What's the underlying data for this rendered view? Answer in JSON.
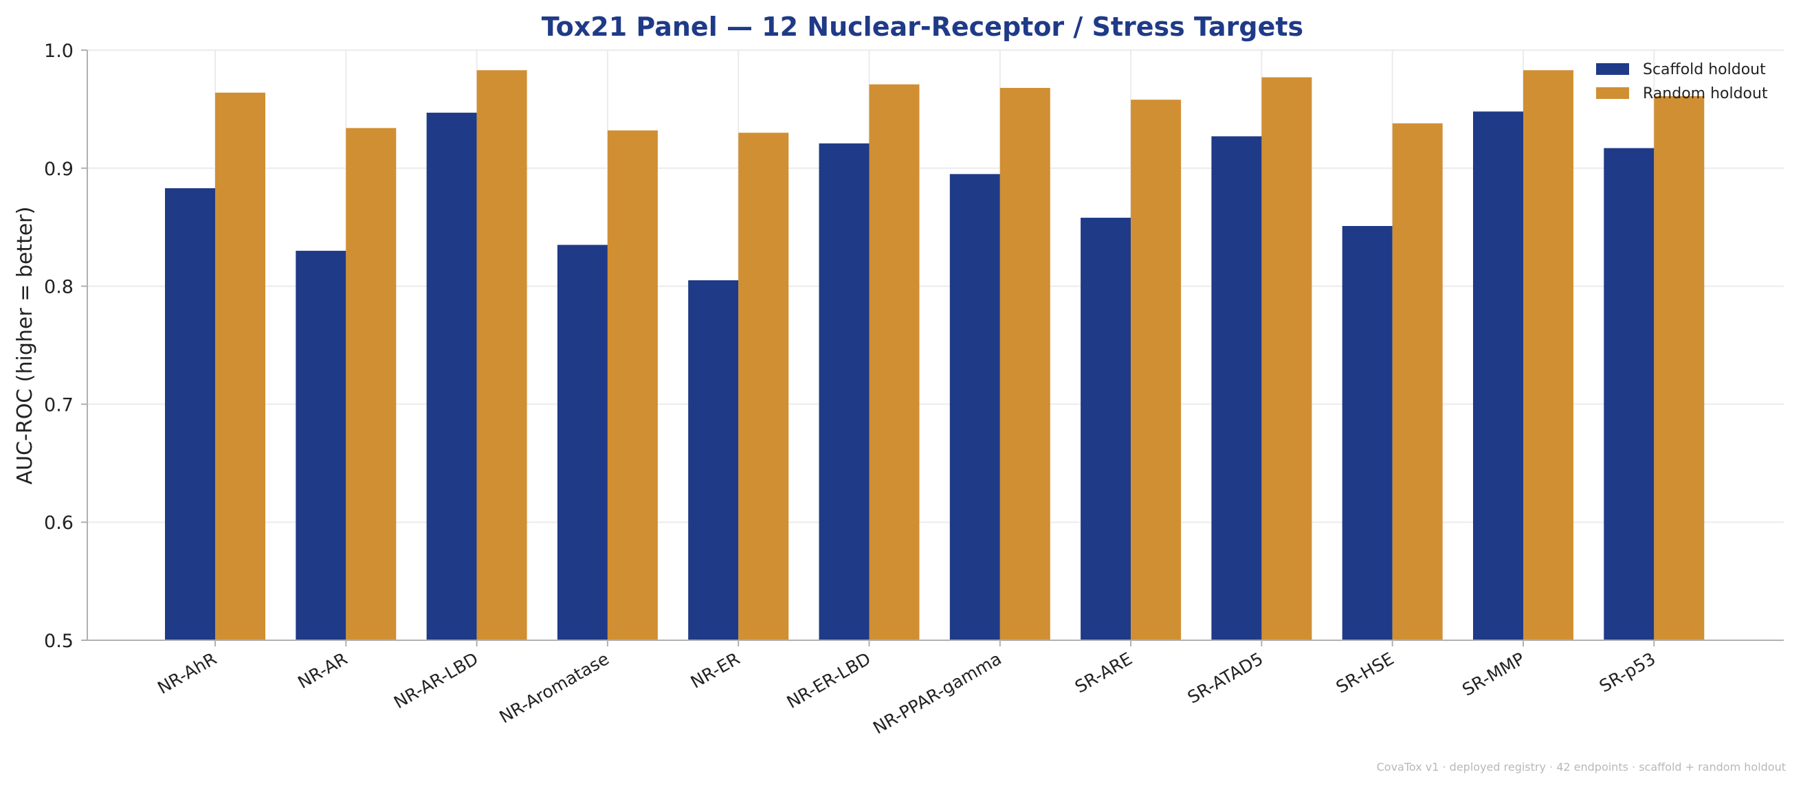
{
  "chart_data": {
    "type": "bar",
    "title": "Tox21 Panel — 12 Nuclear-Receptor / Stress Targets",
    "xlabel": "",
    "ylabel": "AUC-ROC  (higher = better)",
    "ylim": [
      0.5,
      1.0
    ],
    "yticks": [
      "0.5",
      "0.6",
      "0.7",
      "0.8",
      "0.9",
      "1.0"
    ],
    "grid": true,
    "legend_position": "top-right",
    "categories": [
      "NR-AhR",
      "NR-AR",
      "NR-AR-LBD",
      "NR-Aromatase",
      "NR-ER",
      "NR-ER-LBD",
      "NR-PPAR-gamma",
      "SR-ARE",
      "SR-ATAD5",
      "SR-HSE",
      "SR-MMP",
      "SR-p53"
    ],
    "series": [
      {
        "name": "Scaffold holdout",
        "color": "#1f3a87",
        "values": [
          0.883,
          0.83,
          0.947,
          0.835,
          0.805,
          0.921,
          0.895,
          0.858,
          0.927,
          0.851,
          0.948,
          0.917
        ]
      },
      {
        "name": "Random holdout",
        "color": "#d08f33",
        "values": [
          0.964,
          0.934,
          0.983,
          0.932,
          0.93,
          0.971,
          0.968,
          0.958,
          0.977,
          0.938,
          0.983,
          0.961
        ]
      }
    ]
  },
  "footer": "CovaTox v1 · deployed registry · 42 endpoints · scaffold + random holdout"
}
